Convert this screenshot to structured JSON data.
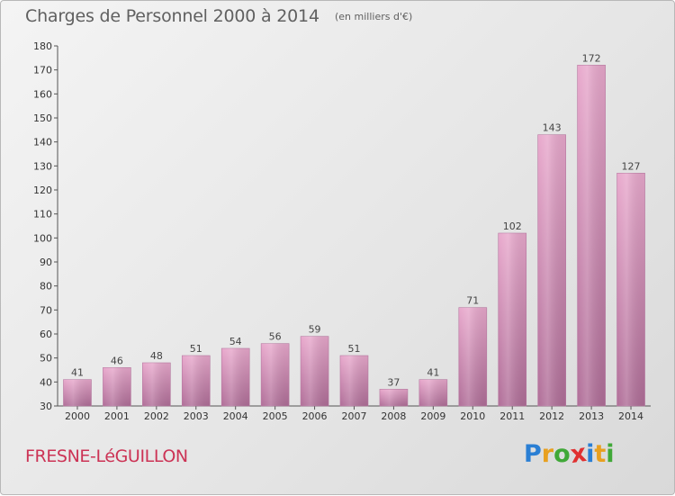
{
  "header": {
    "title": "Charges de Personnel 2000 à 2014",
    "unit": "(en milliers d'€)"
  },
  "footer": {
    "commune": "FRESNE-LéGUILLON",
    "logo_letters": [
      "P",
      "r",
      "o",
      "x",
      "i",
      "t",
      "i"
    ],
    "logo_colors": [
      "#2a7fd4",
      "#e8a020",
      "#40a838",
      "#e03030",
      "#2a7fd4",
      "#e8a020",
      "#40a838"
    ]
  },
  "chart_data": {
    "type": "bar",
    "title": "Charges de Personnel 2000 à 2014",
    "subtitle": "(en milliers d'€)",
    "xlabel": "",
    "ylabel": "",
    "categories": [
      "2000",
      "2001",
      "2002",
      "2003",
      "2004",
      "2005",
      "2006",
      "2007",
      "2008",
      "2009",
      "2010",
      "2011",
      "2012",
      "2013",
      "2014"
    ],
    "values": [
      41,
      46,
      48,
      51,
      54,
      56,
      59,
      51,
      37,
      41,
      71,
      102,
      143,
      172,
      127
    ],
    "ylim": [
      30,
      180
    ],
    "yticks": [
      30,
      40,
      50,
      60,
      70,
      80,
      90,
      100,
      110,
      120,
      130,
      140,
      150,
      160,
      170,
      180
    ],
    "grid": false,
    "bar_color": "#d58cb4",
    "bar_color_dark": "#b06e98"
  }
}
